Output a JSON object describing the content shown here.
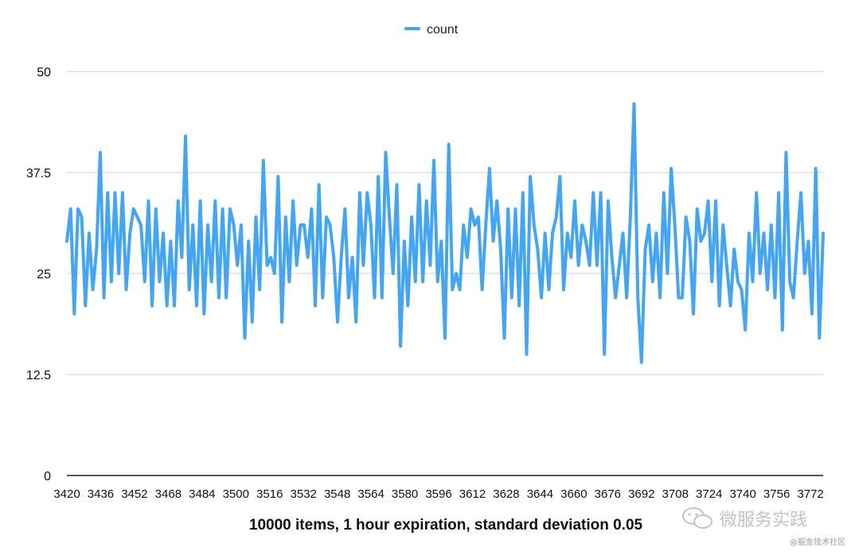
{
  "chart_data": {
    "type": "line",
    "title": "10000 items, 1 hour expiration, standard deviation 0.05",
    "xlabel": "",
    "ylabel": "",
    "ylim": [
      0,
      50
    ],
    "yticks": [
      "0",
      "12.5",
      "25",
      "37.5",
      "50"
    ],
    "xticks": [
      "3420",
      "3436",
      "3452",
      "3468",
      "3484",
      "3500",
      "3516",
      "3532",
      "3548",
      "3564",
      "3580",
      "3596",
      "3612",
      "3628",
      "3644",
      "3660",
      "3676",
      "3692",
      "3708",
      "3724",
      "3740",
      "3756",
      "3772"
    ],
    "x_start": 3420,
    "x_end": 3778,
    "grid": "horizontal",
    "legend_position": "top-center",
    "series": [
      {
        "name": "count",
        "color": "#42a5f5",
        "values": [
          29,
          33,
          20,
          33,
          32,
          21,
          30,
          23,
          28,
          40,
          22,
          35,
          24,
          35,
          25,
          35,
          23,
          30,
          33,
          32,
          31,
          24,
          34,
          21,
          33,
          24,
          30,
          21,
          29,
          21,
          34,
          27,
          42,
          23,
          31,
          21,
          34,
          20,
          31,
          24,
          34,
          22,
          33,
          22,
          33,
          31,
          26,
          31,
          17,
          29,
          19,
          32,
          23,
          39,
          26,
          27,
          25,
          37,
          19,
          32,
          24,
          34,
          26,
          31,
          31,
          27,
          33,
          21,
          36,
          22,
          32,
          31,
          27,
          19,
          27,
          33,
          22,
          27,
          19,
          35,
          26,
          35,
          31,
          22,
          37,
          22,
          40,
          32,
          25,
          36,
          16,
          29,
          21,
          32,
          24,
          36,
          24,
          34,
          26,
          39,
          24,
          29,
          17,
          41,
          23,
          25,
          23,
          31,
          27,
          33,
          31,
          32,
          23,
          31,
          38,
          29,
          34,
          28,
          17,
          33,
          22,
          33,
          21,
          35,
          15,
          37,
          31,
          28,
          22,
          30,
          23,
          30,
          32,
          37,
          23,
          30,
          27,
          34,
          26,
          31,
          29,
          26,
          35,
          26,
          35,
          15,
          34,
          27,
          22,
          26,
          30,
          22,
          32,
          46,
          22,
          14,
          28,
          31,
          24,
          30,
          22,
          35,
          25,
          38,
          31,
          22,
          22,
          32,
          29,
          20,
          33,
          29,
          30,
          34,
          24,
          34,
          21,
          31,
          26,
          21,
          28,
          24,
          23,
          18,
          30,
          24,
          35,
          25,
          30,
          23,
          31,
          22,
          35,
          18,
          40,
          24,
          22,
          29,
          35,
          25,
          29,
          20,
          38,
          17,
          30
        ]
      }
    ]
  },
  "watermark": {
    "text": "微服务实践",
    "sub": "@掘金技术社区"
  }
}
